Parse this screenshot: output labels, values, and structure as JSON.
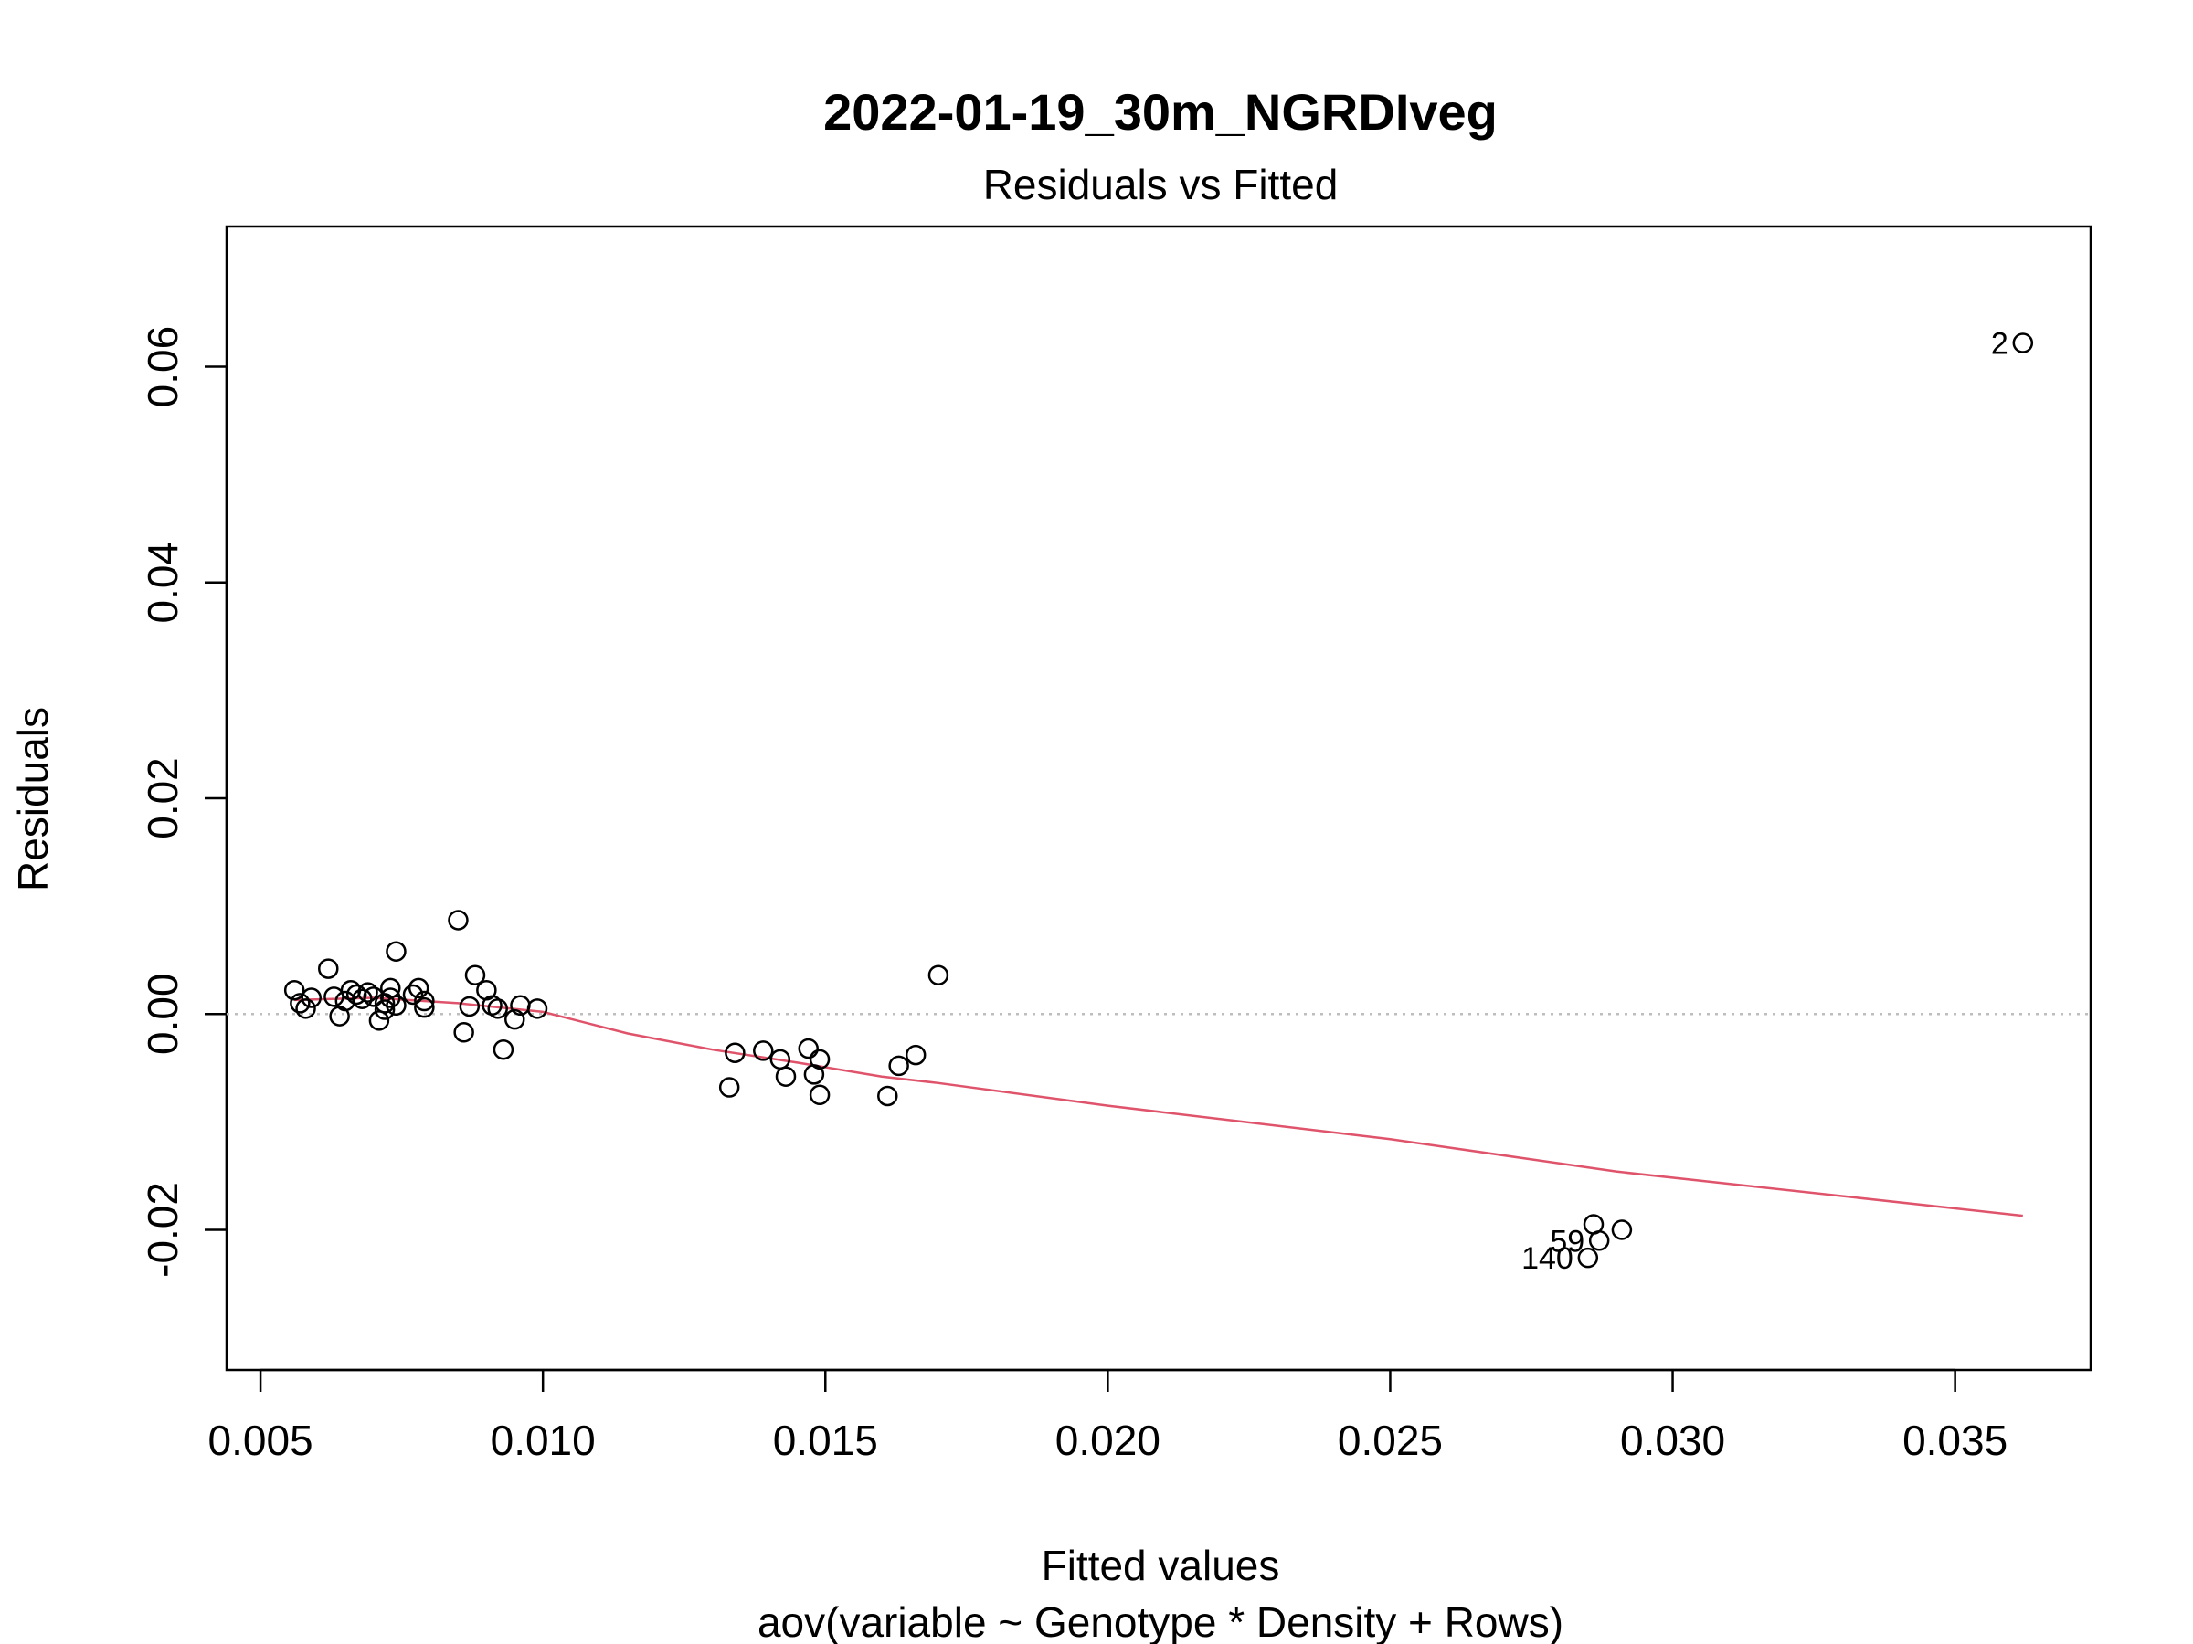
{
  "chart_data": {
    "type": "scatter",
    "title": "2022-01-19_30m_NGRDIveg",
    "subtitle": "Residuals vs Fitted",
    "xlabel": "Fitted values",
    "xlabel_sub": "aov(variable ~ Genotype * Density + Rows)",
    "ylabel": "Residuals",
    "xlim": [
      0.0044,
      0.0374
    ],
    "ylim": [
      -0.033,
      0.073
    ],
    "x_ticks": [
      "0.005",
      "0.010",
      "0.015",
      "0.020",
      "0.025",
      "0.030",
      "0.035"
    ],
    "y_ticks": [
      "-0.02",
      "0.00",
      "0.02",
      "0.04",
      "0.06"
    ],
    "reference_line": 0,
    "grid": false,
    "colors": {
      "points": "#000000",
      "smooth_line": "#DF536B",
      "reference_line": "#BEBEBE"
    },
    "points": [
      {
        "x": 0.0056,
        "y": 0.0022
      },
      {
        "x": 0.0057,
        "y": 0.001
      },
      {
        "x": 0.0058,
        "y": 0.0005
      },
      {
        "x": 0.0059,
        "y": 0.0015
      },
      {
        "x": 0.0062,
        "y": 0.0042
      },
      {
        "x": 0.0063,
        "y": 0.0016
      },
      {
        "x": 0.0064,
        "y": -0.0002
      },
      {
        "x": 0.0065,
        "y": 0.0012
      },
      {
        "x": 0.0066,
        "y": 0.0022
      },
      {
        "x": 0.0067,
        "y": 0.0018
      },
      {
        "x": 0.0068,
        "y": 0.0014
      },
      {
        "x": 0.0069,
        "y": 0.002
      },
      {
        "x": 0.007,
        "y": 0.0016
      },
      {
        "x": 0.0071,
        "y": -0.0006
      },
      {
        "x": 0.0072,
        "y": 0.001
      },
      {
        "x": 0.0072,
        "y": 0.0004
      },
      {
        "x": 0.0073,
        "y": 0.0024
      },
      {
        "x": 0.0073,
        "y": 0.0015
      },
      {
        "x": 0.0074,
        "y": 0.0058
      },
      {
        "x": 0.0074,
        "y": 0.0008
      },
      {
        "x": 0.0077,
        "y": 0.0018
      },
      {
        "x": 0.0078,
        "y": 0.0024
      },
      {
        "x": 0.0079,
        "y": 0.0012
      },
      {
        "x": 0.0079,
        "y": 0.0006
      },
      {
        "x": 0.0085,
        "y": 0.0087
      },
      {
        "x": 0.0086,
        "y": -0.0017
      },
      {
        "x": 0.0087,
        "y": 0.0007
      },
      {
        "x": 0.0088,
        "y": 0.0036
      },
      {
        "x": 0.009,
        "y": 0.0022
      },
      {
        "x": 0.0091,
        "y": 0.0008
      },
      {
        "x": 0.0092,
        "y": 0.0005
      },
      {
        "x": 0.0093,
        "y": -0.0033
      },
      {
        "x": 0.0095,
        "y": -0.0005
      },
      {
        "x": 0.0096,
        "y": 0.0008
      },
      {
        "x": 0.0099,
        "y": 0.0005
      },
      {
        "x": 0.0133,
        "y": -0.0068
      },
      {
        "x": 0.0134,
        "y": -0.0036
      },
      {
        "x": 0.0139,
        "y": -0.0034
      },
      {
        "x": 0.0142,
        "y": -0.0042
      },
      {
        "x": 0.0143,
        "y": -0.0058
      },
      {
        "x": 0.0147,
        "y": -0.0032
      },
      {
        "x": 0.0148,
        "y": -0.0056
      },
      {
        "x": 0.0149,
        "y": -0.0042
      },
      {
        "x": 0.0149,
        "y": -0.0075
      },
      {
        "x": 0.0161,
        "y": -0.0076
      },
      {
        "x": 0.0163,
        "y": -0.0048
      },
      {
        "x": 0.0166,
        "y": -0.0038
      },
      {
        "x": 0.017,
        "y": 0.0036
      },
      {
        "x": 0.0285,
        "y": -0.0226
      },
      {
        "x": 0.0286,
        "y": -0.0195
      },
      {
        "x": 0.0287,
        "y": -0.021
      },
      {
        "x": 0.0291,
        "y": -0.02
      },
      {
        "x": 0.0362,
        "y": 0.0622
      }
    ],
    "smooth_line": [
      {
        "x": 0.0056,
        "y": 0.0013
      },
      {
        "x": 0.007,
        "y": 0.0015
      },
      {
        "x": 0.0085,
        "y": 0.001
      },
      {
        "x": 0.01,
        "y": 0.0002
      },
      {
        "x": 0.0115,
        "y": -0.0018
      },
      {
        "x": 0.013,
        "y": -0.0033
      },
      {
        "x": 0.0145,
        "y": -0.0045
      },
      {
        "x": 0.016,
        "y": -0.0058
      },
      {
        "x": 0.017,
        "y": -0.0064
      },
      {
        "x": 0.02,
        "y": -0.0085
      },
      {
        "x": 0.025,
        "y": -0.0116
      },
      {
        "x": 0.029,
        "y": -0.0146
      },
      {
        "x": 0.0362,
        "y": -0.0187
      }
    ],
    "point_labels": [
      {
        "text": "2",
        "x": 0.0362,
        "y": 0.0622
      },
      {
        "text": "59",
        "x": 0.0287,
        "y": -0.021
      },
      {
        "text": "140",
        "x": 0.0285,
        "y": -0.0226
      }
    ]
  }
}
